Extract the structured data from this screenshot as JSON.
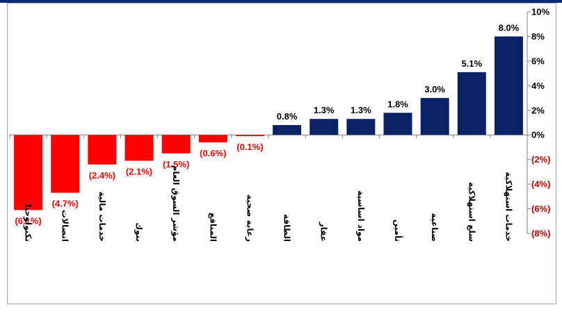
{
  "chart_data": {
    "type": "bar",
    "categories": [
      "تكنولوجيا",
      "اتصالات",
      "خدمات مالية",
      "بنوك",
      "مؤشر السوق العام",
      "المنافع",
      "رعاية صحية",
      "الطاقة",
      "عقار",
      "مواد اساسية",
      "تأمين",
      "صناعية",
      "سلع استهلاكية",
      "خدمات استهلاكية"
    ],
    "values": [
      -6.1,
      -4.7,
      -2.4,
      -2.1,
      -1.5,
      -0.6,
      -0.1,
      0.8,
      1.3,
      1.3,
      1.8,
      3.0,
      5.1,
      8.0
    ],
    "value_labels": [
      "(6.1%)",
      "(4.7%)",
      "(2.4%)",
      "(2.1%)",
      "(1.5%)",
      "(0.6%)",
      "(0.1%)",
      "0.8%",
      "1.3%",
      "1.3%",
      "1.8%",
      "3.0%",
      "5.1%",
      "8.0%"
    ],
    "y_ticks": [
      10,
      8,
      6,
      4,
      2,
      0,
      -2,
      -4,
      -6,
      -8
    ],
    "y_tick_labels": [
      "10%",
      "8%",
      "6%",
      "4%",
      "2%",
      "0%",
      "(2%)",
      "(4%)",
      "(6%)",
      "(8%)"
    ],
    "ylim": [
      -8,
      10
    ],
    "y_axis_position": "right",
    "grid": false,
    "legend": "none",
    "colors": {
      "positive": "#0b2266",
      "negative": "#ff0000",
      "axis": "#7f7f7f"
    }
  }
}
